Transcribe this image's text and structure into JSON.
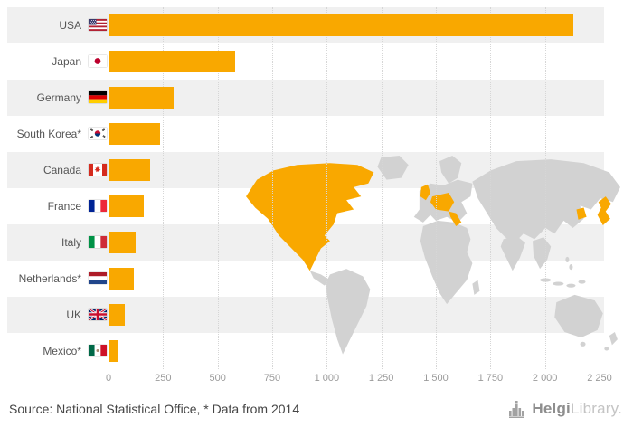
{
  "chart_data": {
    "type": "bar",
    "orientation": "horizontal",
    "title": "",
    "categories": [
      "USA",
      "Japan",
      "Germany",
      "South Korea*",
      "Canada",
      "France",
      "Italy",
      "Netherlands*",
      "UK",
      "Mexico*"
    ],
    "flags": [
      "us",
      "jp",
      "de",
      "kr",
      "ca",
      "fr",
      "it",
      "nl",
      "gb",
      "mx"
    ],
    "values": [
      2130,
      580,
      300,
      235,
      190,
      160,
      125,
      115,
      75,
      40
    ],
    "xlim": [
      0,
      2250
    ],
    "x_ticks": [
      0,
      250,
      500,
      750,
      1000,
      1250,
      1500,
      1750,
      2000,
      2250
    ],
    "x_tick_labels": [
      "0",
      "250",
      "500",
      "750",
      "1 000",
      "1 250",
      "1 500",
      "1 750",
      "2 000",
      "2 250"
    ],
    "grid": true,
    "legend": false,
    "map_highlighted_countries": [
      "USA",
      "Canada",
      "Mexico",
      "UK",
      "France",
      "Germany",
      "Netherlands",
      "Italy",
      "South Korea",
      "Japan"
    ],
    "colors": {
      "bar": "#f9a800",
      "map_land": "#d2d2d2",
      "map_highlight": "#f9a800",
      "stripe": "#f0f0f0"
    }
  },
  "footer": {
    "source": "Source: National Statistical Office, * Data from 2014",
    "brand": {
      "name_bold": "Helgi",
      "name_light": "Library."
    }
  }
}
